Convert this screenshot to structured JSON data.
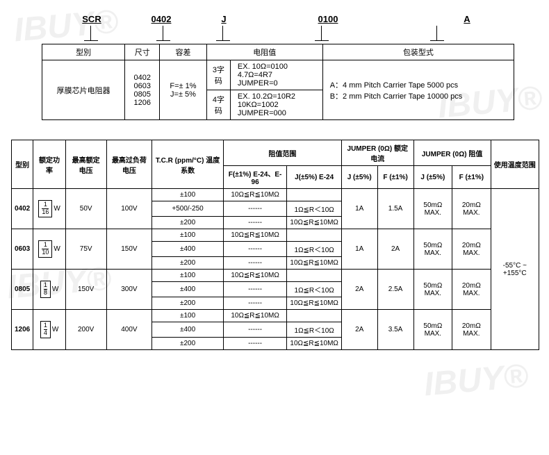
{
  "watermarks": [
    "IBUY®",
    "IBUY®",
    "IBUY®",
    "IBUY®"
  ],
  "code": {
    "seg1": "SCR",
    "seg2": "0402",
    "seg3": "J",
    "seg4": "0100",
    "seg5": "A"
  },
  "upper_table": {
    "headers": {
      "type": "型別",
      "size": "尺寸",
      "tolerance": "容差",
      "resistance": "电阻值",
      "packaging": "包装型式"
    },
    "row": {
      "type": "厚膜芯片电阻器",
      "sizes": [
        "0402",
        "0603",
        "0805",
        "1206"
      ],
      "tolerance": [
        "F=± 1%",
        "J=± 5%"
      ],
      "res3_label": "3字码",
      "res3_lines": [
        "EX. 10Ω=0100",
        "4.7Ω=4R7",
        "JUMPER=0"
      ],
      "res4_label": "4字码",
      "res4_lines": [
        "EX. 10.2Ω=10R2",
        "10KΩ=1002",
        "JUMPER=000"
      ],
      "packaging_lines": [
        "A：4 mm Pitch Carrier Tape 5000 pcs",
        "B：2 mm Pitch Carrier Tape 10000 pcs"
      ]
    }
  },
  "lower_table": {
    "headers": {
      "type": "型别",
      "rated_power": "额定功率",
      "max_wv": "最高额定电压",
      "max_ov": "最高过负荷电压",
      "tcr": "T.C.R (ppm/°C) 温度系数",
      "range": "阻值范围",
      "range_f": "F(±1%) E-24、E-96",
      "range_j": "J(±5%) E-24",
      "jumper_i": "JUMPER (0Ω) 额定电流",
      "jumper_i_j": "J (±5%)",
      "jumper_i_f": "F (±1%)",
      "jumper_r": "JUMPER (0Ω) 阻值",
      "jumper_r_j": "J (±5%)",
      "jumper_r_f": "F (±1%)",
      "temp_range": "使用温度范围"
    },
    "temp_range_value": "-55°C ~ +155°C",
    "rows": [
      {
        "type": "0402",
        "power_num": "1",
        "power_den": "16",
        "max_wv": "50V",
        "max_ov": "100V",
        "tcrs": [
          "±100",
          "+500/-250",
          "±200"
        ],
        "rf": [
          "10Ω≦R≦10MΩ",
          "------",
          "------"
        ],
        "rj": [
          "",
          "1Ω≦R＜10Ω",
          "10Ω≦R≦10MΩ"
        ],
        "ji_j": "1A",
        "ji_f": "1.5A",
        "jr_j": "50mΩ MAX.",
        "jr_f": "20mΩ MAX."
      },
      {
        "type": "0603",
        "power_num": "1",
        "power_den": "10",
        "max_wv": "75V",
        "max_ov": "150V",
        "tcrs": [
          "±100",
          "±400",
          "±200"
        ],
        "rf": [
          "10Ω≦R≦10MΩ",
          "------",
          "------"
        ],
        "rj": [
          "",
          "1Ω≦R＜10Ω",
          "10Ω≦R≦10MΩ"
        ],
        "ji_j": "1A",
        "ji_f": "2A",
        "jr_j": "50mΩ MAX.",
        "jr_f": "20mΩ MAX."
      },
      {
        "type": "0805",
        "power_num": "1",
        "power_den": "8",
        "max_wv": "150V",
        "max_ov": "300V",
        "tcrs": [
          "±100",
          "±400",
          "±200"
        ],
        "rf": [
          "10Ω≦R≦10MΩ",
          "------",
          "------"
        ],
        "rj": [
          "",
          "1Ω≦R＜10Ω",
          "10Ω≦R≦10MΩ"
        ],
        "ji_j": "2A",
        "ji_f": "2.5A",
        "jr_j": "50mΩ MAX.",
        "jr_f": "20mΩ MAX."
      },
      {
        "type": "1206",
        "power_num": "1",
        "power_den": "4",
        "max_wv": "200V",
        "max_ov": "400V",
        "tcrs": [
          "±100",
          "±400",
          "±200"
        ],
        "rf": [
          "10Ω≦R≦10MΩ",
          "------",
          "------"
        ],
        "rj": [
          "",
          "1Ω≦R＜10Ω",
          "10Ω≦R≦10MΩ"
        ],
        "ji_j": "2A",
        "ji_f": "3.5A",
        "jr_j": "50mΩ MAX.",
        "jr_f": "20mΩ MAX."
      }
    ]
  },
  "colors": {
    "border": "#000000",
    "text": "#000000",
    "watermark": "#f0f0f0",
    "background": "#ffffff"
  }
}
